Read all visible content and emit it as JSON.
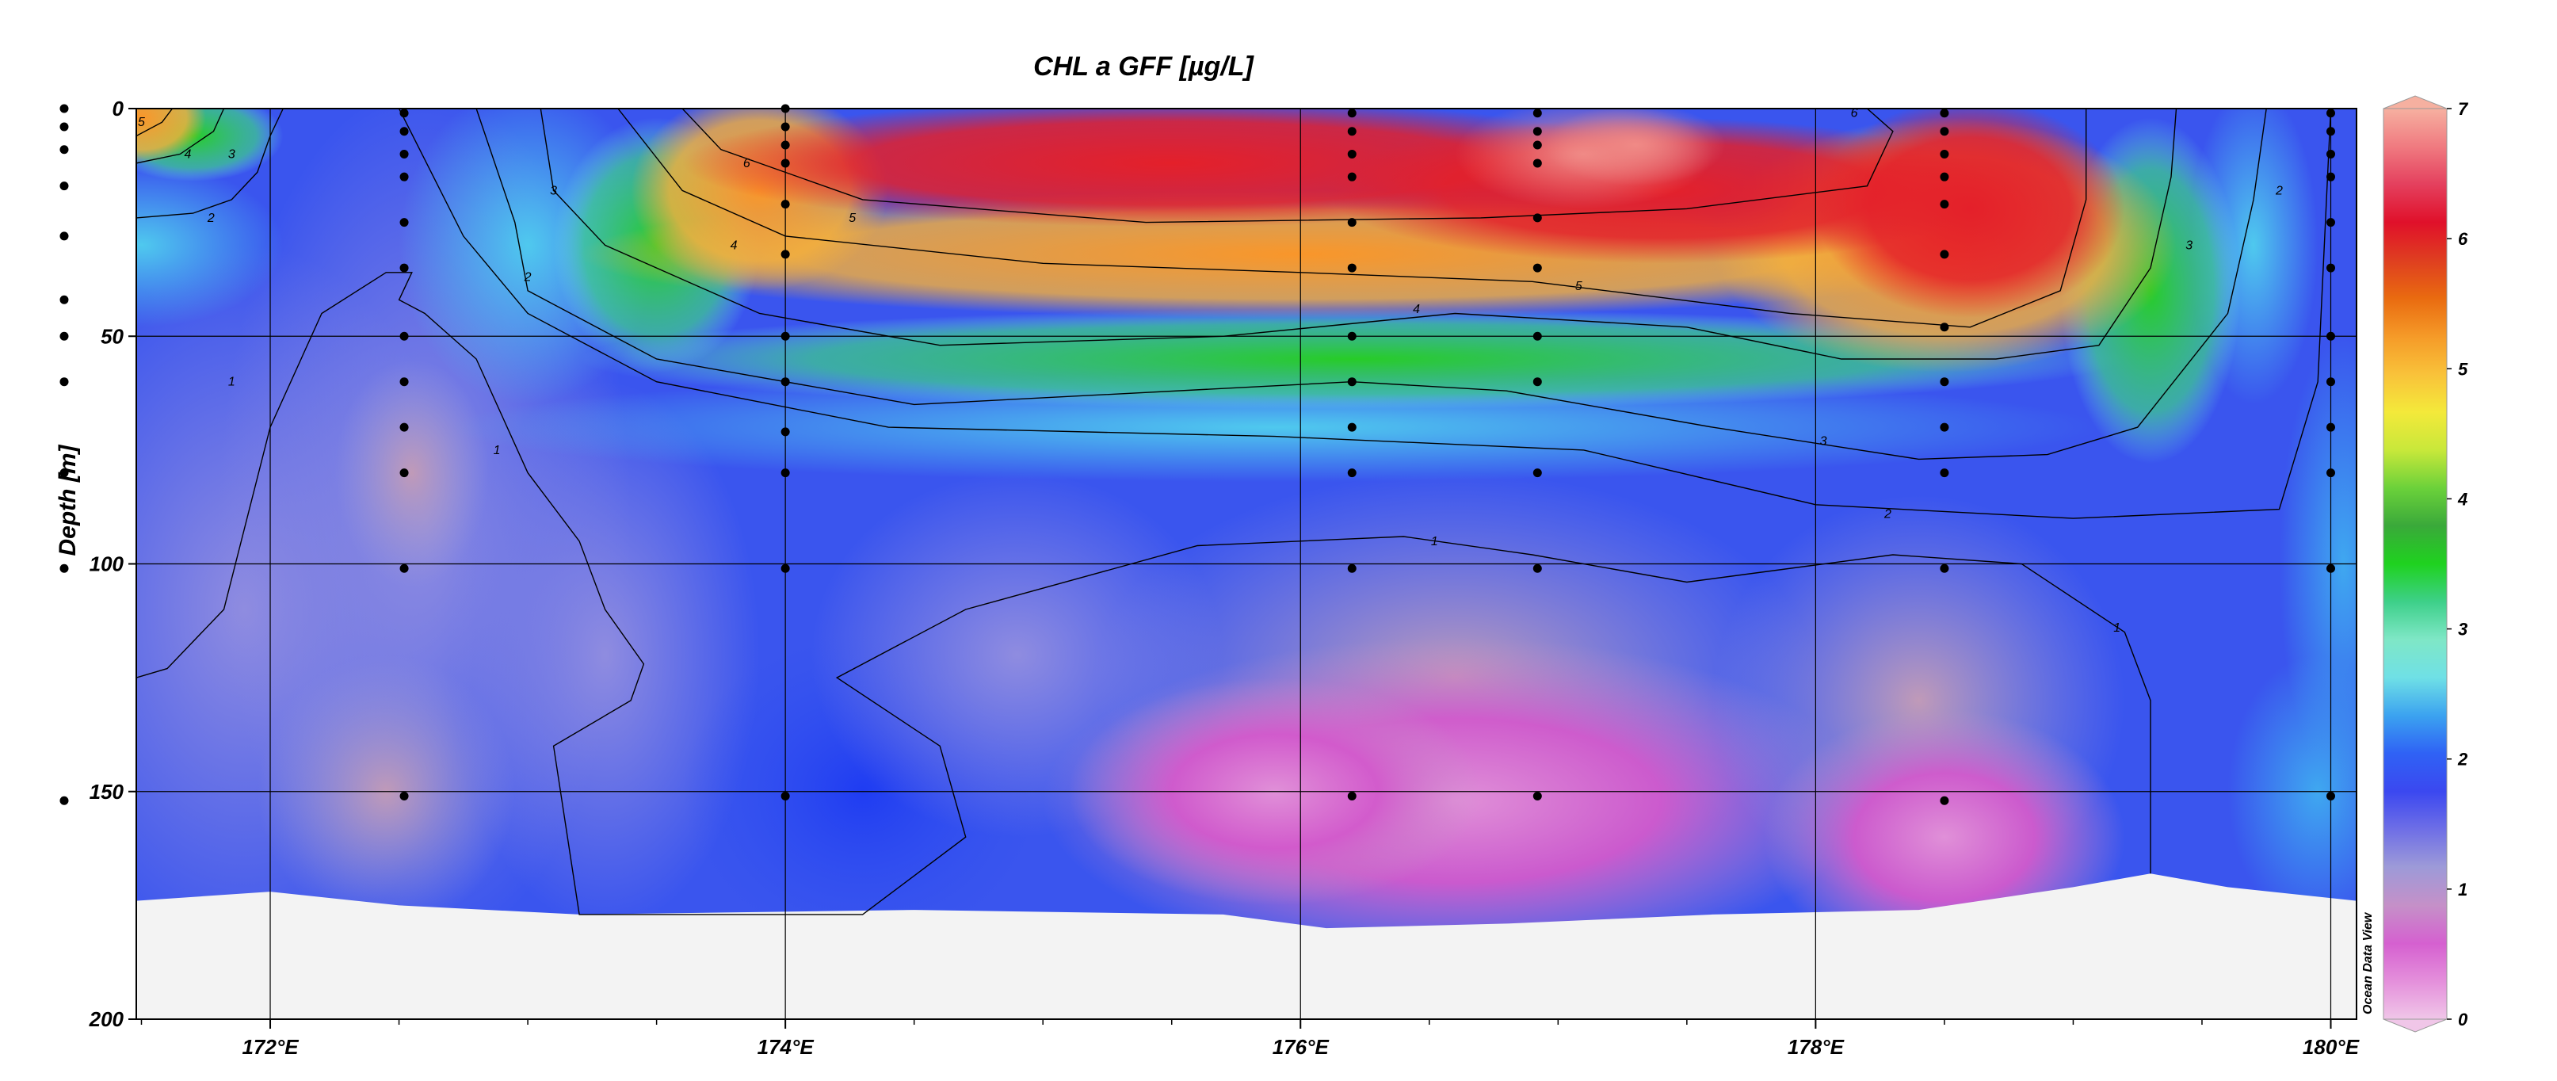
{
  "chart_data": {
    "type": "heatmap",
    "title": "CHL a GFF [µg/L]",
    "ylabel": "Depth [m]",
    "xlabel": "",
    "xlim": [
      171.48,
      180.1
    ],
    "ylim": [
      200,
      0
    ],
    "x_ticks": [
      172,
      174,
      176,
      178,
      180
    ],
    "x_tick_labels": [
      "172°E",
      "174°E",
      "176°E",
      "178°E",
      "180°E"
    ],
    "y_ticks": [
      0,
      50,
      100,
      150,
      200
    ],
    "y_tick_labels": [
      "0",
      "50",
      "100",
      "150",
      "200"
    ],
    "grid": true,
    "colorbar": {
      "range": [
        0,
        7
      ],
      "ticks": [
        0,
        1,
        2,
        3,
        4,
        5,
        6,
        7
      ],
      "tick_labels": [
        "0",
        "1",
        "2",
        "3",
        "4",
        "5",
        "6",
        "7"
      ],
      "palette": [
        "#f0c6e8",
        "#e48fdb",
        "#d560d0",
        "#c590c8",
        "#9d9ad8",
        "#6f6fe6",
        "#3b48f0",
        "#2f62f5",
        "#3ba2f0",
        "#6fe0e6",
        "#7fe7c6",
        "#3ed08a",
        "#1fd21f",
        "#3aa93a",
        "#6bd13a",
        "#c8e83a",
        "#f4e93a",
        "#f9c23a",
        "#f59a28",
        "#e96a10",
        "#df3f20",
        "#e0102a",
        "#e4405e",
        "#f07a80",
        "#f6b0a0"
      ]
    },
    "contour_levels": [
      1,
      2,
      3,
      4,
      5,
      6
    ],
    "contour_labels": [
      {
        "text": "5",
        "x": 171.5,
        "y": 3
      },
      {
        "text": "4",
        "x": 171.68,
        "y": 10
      },
      {
        "text": "3",
        "x": 171.85,
        "y": 10
      },
      {
        "text": "2",
        "x": 171.77,
        "y": 24
      },
      {
        "text": "3",
        "x": 173.1,
        "y": 18
      },
      {
        "text": "2",
        "x": 173.0,
        "y": 37
      },
      {
        "text": "1",
        "x": 171.85,
        "y": 60
      },
      {
        "text": "1",
        "x": 172.88,
        "y": 75
      },
      {
        "text": "6",
        "x": 173.85,
        "y": 12
      },
      {
        "text": "5",
        "x": 174.26,
        "y": 24
      },
      {
        "text": "4",
        "x": 173.8,
        "y": 30
      },
      {
        "text": "6",
        "x": 178.15,
        "y": 1
      },
      {
        "text": "5",
        "x": 177.08,
        "y": 39
      },
      {
        "text": "4",
        "x": 176.45,
        "y": 44
      },
      {
        "text": "3",
        "x": 179.45,
        "y": 30
      },
      {
        "text": "2",
        "x": 179.8,
        "y": 18
      },
      {
        "text": "3",
        "x": 178.03,
        "y": 73
      },
      {
        "text": "2",
        "x": 178.28,
        "y": 89
      },
      {
        "text": "1",
        "x": 176.52,
        "y": 95
      },
      {
        "text": "1",
        "x": 179.17,
        "y": 114
      }
    ],
    "stations": [
      {
        "x": 171.2,
        "depths": [
          0,
          4,
          9,
          17,
          28,
          42,
          50,
          60,
          80,
          101,
          152
        ]
      },
      {
        "x": 172.52,
        "depths": [
          1,
          5,
          10,
          15,
          25,
          35,
          50,
          60,
          70,
          80,
          101,
          151
        ]
      },
      {
        "x": 174.0,
        "depths": [
          0,
          4,
          8,
          12,
          21,
          32,
          50,
          60,
          71,
          80,
          101,
          151
        ]
      },
      {
        "x": 176.2,
        "depths": [
          1,
          5,
          10,
          15,
          25,
          35,
          50,
          60,
          70,
          80,
          101,
          151
        ]
      },
      {
        "x": 176.92,
        "depths": [
          1,
          5,
          8,
          12,
          24,
          35,
          50,
          60,
          80,
          101,
          151
        ]
      },
      {
        "x": 178.5,
        "depths": [
          1,
          5,
          10,
          15,
          21,
          32,
          48,
          60,
          70,
          80,
          101,
          152
        ]
      },
      {
        "x": 180.0,
        "depths": [
          1,
          5,
          10,
          15,
          25,
          35,
          50,
          60,
          70,
          80,
          101,
          151
        ]
      }
    ],
    "seafloor": [
      {
        "x": 171.48,
        "depth": 174
      },
      {
        "x": 172.0,
        "depth": 172
      },
      {
        "x": 172.5,
        "depth": 175
      },
      {
        "x": 173.2,
        "depth": 177
      },
      {
        "x": 174.5,
        "depth": 176
      },
      {
        "x": 175.7,
        "depth": 177
      },
      {
        "x": 176.1,
        "depth": 180
      },
      {
        "x": 176.8,
        "depth": 179
      },
      {
        "x": 177.6,
        "depth": 177
      },
      {
        "x": 178.4,
        "depth": 176
      },
      {
        "x": 179.0,
        "depth": 171
      },
      {
        "x": 179.3,
        "depth": 168
      },
      {
        "x": 179.6,
        "depth": 171
      },
      {
        "x": 180.1,
        "depth": 174
      }
    ],
    "credit": "Ocean Data View"
  }
}
